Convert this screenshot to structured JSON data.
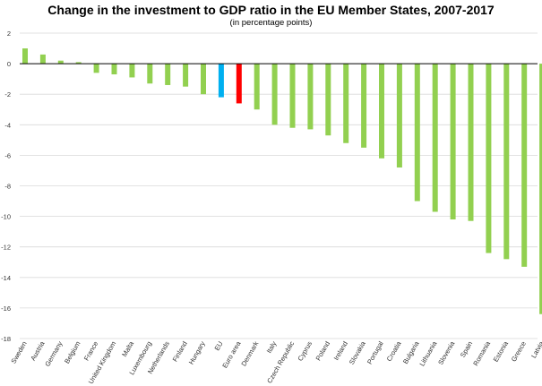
{
  "chart_data": {
    "type": "bar",
    "title": "Change in the investment to GDP ratio in the EU Member States, 2007-2017",
    "subtitle": "(in percentage points)",
    "xlabel": "",
    "ylabel": "",
    "ylim": [
      -18,
      2
    ],
    "yticks": [
      2,
      0,
      -2,
      -4,
      -6,
      -8,
      -10,
      -12,
      -14,
      -16,
      -18
    ],
    "grid": true,
    "categories": [
      "Sweden",
      "Austria",
      "Germany",
      "Belgium",
      "France",
      "United Kingdom",
      "Malta",
      "Luxembourg",
      "Netherlands",
      "Finland",
      "Hungary",
      "EU",
      "Euro area",
      "Denmark",
      "Italy",
      "Czech Republic",
      "Cyprus",
      "Poland",
      "Ireland",
      "Slovakia",
      "Portugal",
      "Croatia",
      "Bulgaria",
      "Lithuania",
      "Slovenia",
      "Spain",
      "Romania",
      "Estonia",
      "Greece",
      "Latvia"
    ],
    "values": [
      1.0,
      0.6,
      0.2,
      0.1,
      -0.6,
      -0.7,
      -0.9,
      -1.3,
      -1.4,
      -1.5,
      -2.0,
      -2.2,
      -2.6,
      -3.0,
      -4.0,
      -4.2,
      -4.3,
      -4.7,
      -5.2,
      -5.5,
      -6.2,
      -6.8,
      -9.0,
      -9.7,
      -10.2,
      -10.3,
      -12.4,
      -12.8,
      -13.3,
      -16.4
    ],
    "colors": {
      "default": "#92d050",
      "EU": "#00b0f0",
      "Euro area": "#ff0000",
      "grid": "#d9d9d9",
      "axis": "#000000"
    }
  }
}
